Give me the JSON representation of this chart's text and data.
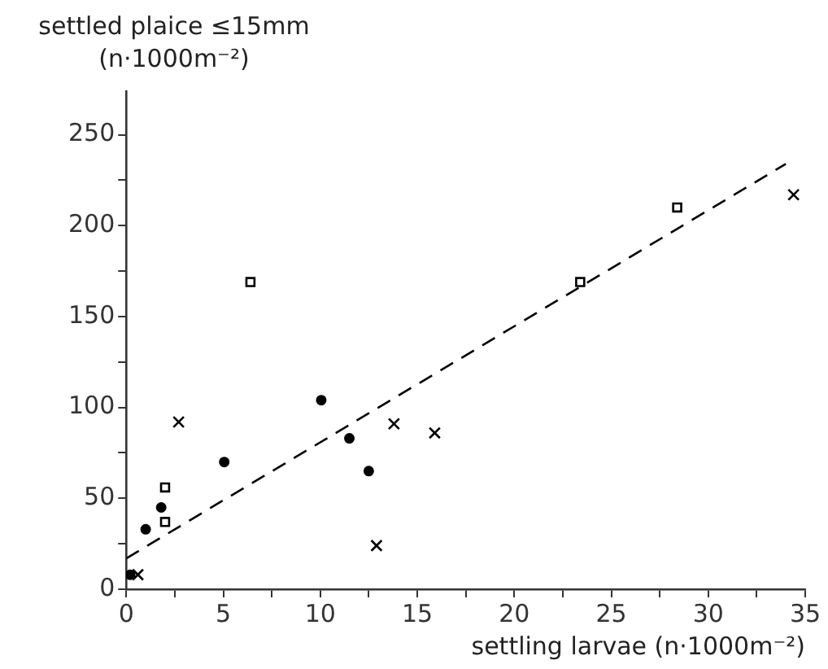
{
  "chart_data": {
    "type": "scatter",
    "xlabel": "settling larvae (n·1000m⁻²)",
    "ylabel": "settled plaice ≤15mm (n·1000m⁻²)",
    "xlim": [
      0,
      35
    ],
    "ylim": [
      0,
      274
    ],
    "xticks": [
      0,
      {
        "value": 2.5,
        "label": null
      },
      5,
      {
        "value": 7.5,
        "label": null
      },
      10,
      {
        "value": 12.5,
        "label": null
      },
      15,
      {
        "value": 17.5,
        "label": null
      },
      20,
      {
        "value": 22.5,
        "label": null
      },
      25,
      {
        "value": 27.5,
        "label": null
      },
      30,
      {
        "value": 32.5,
        "label": null
      },
      35
    ],
    "yticks": [
      0,
      {
        "value": 25,
        "label": null
      },
      50,
      {
        "value": 75,
        "label": null
      },
      100,
      {
        "value": 125,
        "label": null
      },
      150,
      {
        "value": 175,
        "label": null
      },
      200,
      {
        "value": 225,
        "label": null
      },
      250
    ],
    "grid": false,
    "legend": false,
    "series": [
      {
        "type": "scatter",
        "marker": "square",
        "color": "#000000",
        "x": [
          6.4,
          2.0,
          2.0,
          23.4,
          28.4
        ],
        "values": [
          169,
          56,
          37,
          169,
          210
        ]
      },
      {
        "type": "scatter",
        "marker": "circle",
        "color": "#000000",
        "x": [
          0.2,
          1.0,
          1.8,
          5.05,
          10.05,
          11.5,
          12.5
        ],
        "values": [
          8,
          33,
          45,
          70,
          104,
          83,
          65
        ]
      },
      {
        "type": "scatter",
        "marker": "cross",
        "color": "#000000",
        "x": [
          0.6,
          2.7,
          12.9,
          13.8,
          15.9,
          34.4
        ],
        "values": [
          8,
          92,
          24,
          91,
          86,
          217
        ]
      },
      {
        "type": "line",
        "marker": "none",
        "line_style": "dashed",
        "color": "#000000",
        "x": [
          0,
          34
        ],
        "values": [
          17,
          234
        ]
      }
    ]
  }
}
